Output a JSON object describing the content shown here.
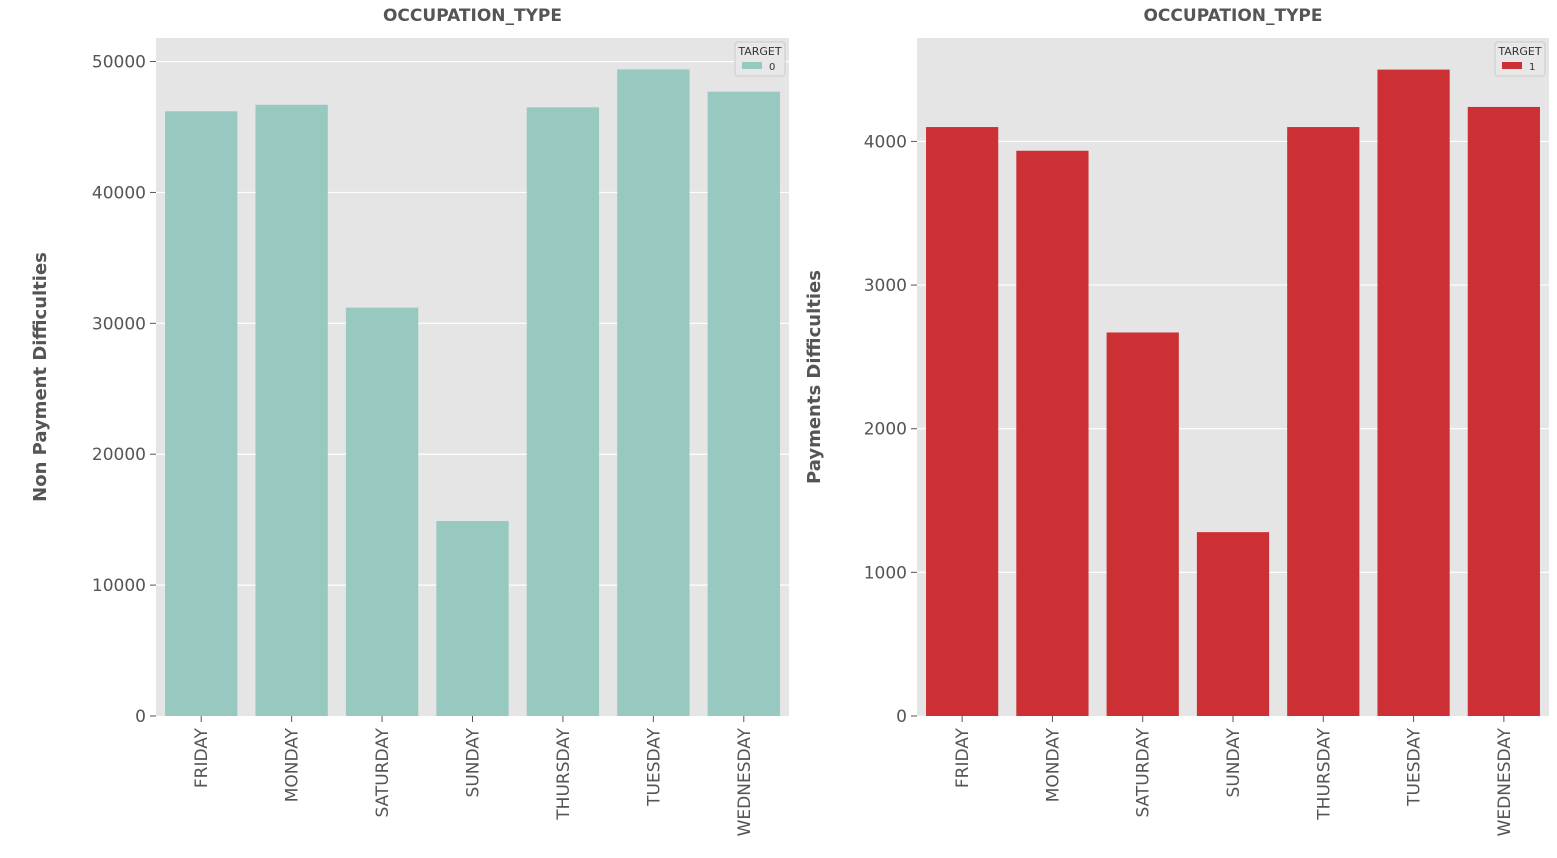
{
  "chart_data": [
    {
      "type": "bar",
      "title": "OCCUPATION_TYPE",
      "ylabel": "Non Payment Difficulties",
      "xlabel": "",
      "categories": [
        "FRIDAY",
        "MONDAY",
        "SATURDAY",
        "SUNDAY",
        "THURSDAY",
        "TUESDAY",
        "WEDNESDAY"
      ],
      "series": [
        {
          "name": "0",
          "color": "#98c9c1",
          "values": [
            46200,
            46700,
            31200,
            14900,
            46500,
            49400,
            47700
          ]
        }
      ],
      "ylim": [
        0,
        51800
      ],
      "yticks": [
        0,
        10000,
        20000,
        30000,
        40000,
        50000
      ],
      "ytick_labels": [
        "0",
        "10000",
        "20000",
        "30000",
        "40000",
        "50000"
      ],
      "legend": {
        "title": "TARGET",
        "placement": "top-right"
      },
      "grid": true,
      "background": "#e5e5e5"
    },
    {
      "type": "bar",
      "title": "OCCUPATION_TYPE",
      "ylabel": "Payments Difficulties",
      "xlabel": "",
      "categories": [
        "FRIDAY",
        "MONDAY",
        "SATURDAY",
        "SUNDAY",
        "THURSDAY",
        "TUESDAY",
        "WEDNESDAY"
      ],
      "series": [
        {
          "name": "1",
          "color": "#cc3034",
          "values": [
            4100,
            3935,
            2670,
            1280,
            4100,
            4500,
            4240
          ]
        }
      ],
      "ylim": [
        0,
        4720
      ],
      "yticks": [
        0,
        1000,
        2000,
        3000,
        4000
      ],
      "ytick_labels": [
        "0",
        "1000",
        "2000",
        "3000",
        "4000"
      ],
      "legend": {
        "title": "TARGET",
        "placement": "top-right"
      },
      "grid": true,
      "background": "#e5e5e5"
    }
  ]
}
